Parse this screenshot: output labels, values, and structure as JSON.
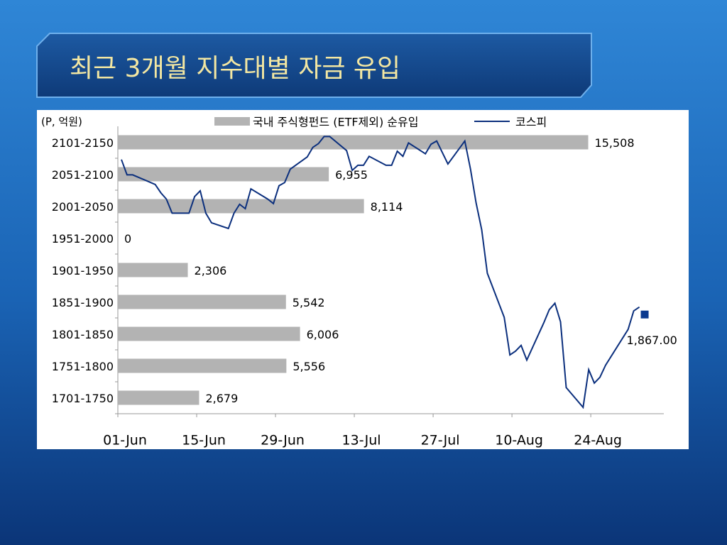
{
  "chart_data": {
    "type": "bar",
    "orientation": "horizontal",
    "title": "최근 3개월 지수대별 자금 유입",
    "unit_label": "(P, 억원)",
    "categories": [
      "1701-1750",
      "1751-1800",
      "1801-1850",
      "1851-1900",
      "1901-1950",
      "1951-2000",
      "2001-2050",
      "2051-2100",
      "2101-2150"
    ],
    "xlim": [
      0,
      18000
    ],
    "series": [
      {
        "name": "국내 주식형펀드 (ETF제외) 순유입",
        "type": "bar",
        "color": "#b3b3b3",
        "values": [
          2679,
          5556,
          6006,
          5542,
          2306,
          0,
          8114,
          6955,
          15508
        ],
        "value_labels": [
          "2,679",
          "5,556",
          "6,006",
          "5,542",
          "2,306",
          "0",
          "8,114",
          "6,955",
          "15,508"
        ]
      },
      {
        "name": "코스피",
        "type": "line",
        "color": "#0b2f7d",
        "axis": "y2",
        "x": [
          "01-Jun",
          "02-Jun",
          "03-Jun",
          "07-Jun",
          "08-Jun",
          "09-Jun",
          "10-Jun",
          "13-Jun",
          "14-Jun",
          "15-Jun",
          "16-Jun",
          "17-Jun",
          "20-Jun",
          "21-Jun",
          "22-Jun",
          "23-Jun",
          "24-Jun",
          "27-Jun",
          "28-Jun",
          "29-Jun",
          "30-Jun",
          "01-Jul",
          "04-Jul",
          "05-Jul",
          "06-Jul",
          "07-Jul",
          "08-Jul",
          "11-Jul",
          "12-Jul",
          "13-Jul",
          "14-Jul",
          "15-Jul",
          "18-Jul",
          "19-Jul",
          "20-Jul",
          "21-Jul",
          "22-Jul",
          "25-Jul",
          "26-Jul",
          "27-Jul",
          "29-Jul",
          "01-Aug",
          "02-Aug",
          "03-Aug",
          "04-Aug",
          "05-Aug",
          "08-Aug",
          "09-Aug",
          "10-Aug",
          "11-Aug",
          "12-Aug",
          "15-Aug",
          "16-Aug",
          "17-Aug",
          "18-Aug",
          "19-Aug",
          "22-Aug",
          "23-Aug",
          "24-Aug",
          "25-Aug",
          "26-Aug",
          "30-Aug",
          "31-Aug",
          "01-Sep"
        ],
        "values": [
          2098,
          2074,
          2074,
          2059,
          2046,
          2036,
          2014,
          2014,
          2040,
          2049,
          2014,
          1999,
          1990,
          2014,
          2028,
          2021,
          2052,
          2036,
          2029,
          2057,
          2062,
          2083,
          2102,
          2117,
          2123,
          2134,
          2134,
          2112,
          2081,
          2089,
          2089,
          2103,
          2089,
          2089,
          2111,
          2103,
          2124,
          2107,
          2122,
          2127,
          2091,
          2127,
          2083,
          2030,
          1988,
          1920,
          1851,
          1792,
          1798,
          1807,
          1784,
          1842,
          1863,
          1873,
          1844,
          1741,
          1710,
          1769,
          1748,
          1757,
          1776,
          1832,
          1861,
          1867
        ],
        "last_value_label": "1,867.00"
      }
    ],
    "y2lim": [
      1700,
      2150
    ],
    "xticks": [
      "01-Jun",
      "15-Jun",
      "29-Jun",
      "13-Jul",
      "27-Jul",
      "10-Aug",
      "24-Aug"
    ]
  }
}
